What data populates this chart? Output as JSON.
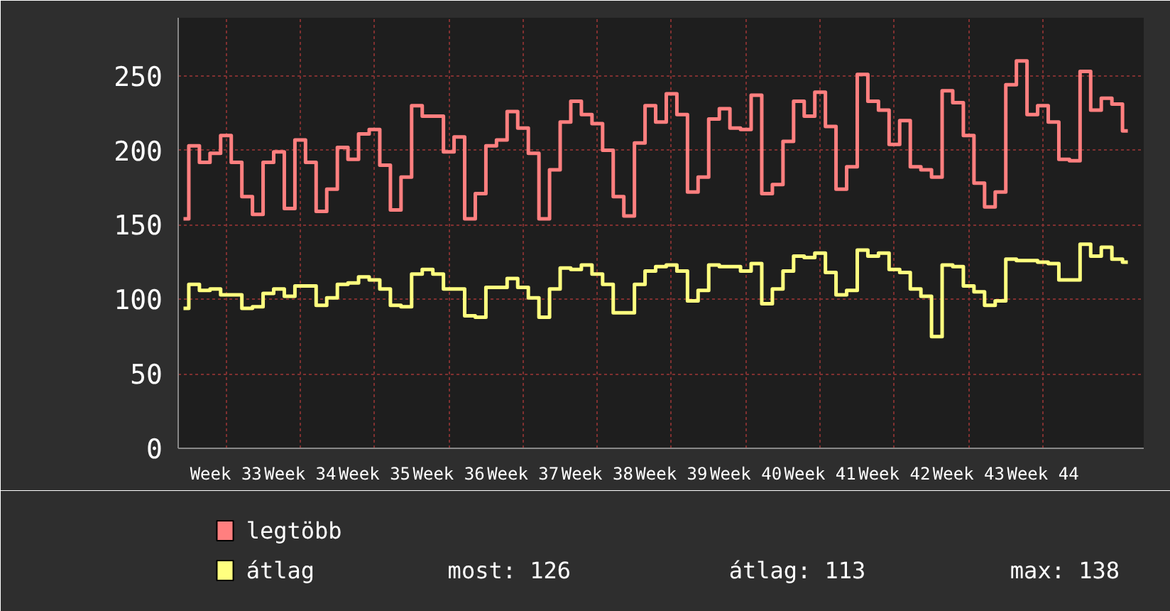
{
  "chart_data": {
    "type": "step",
    "categories": [
      null,
      null,
      null,
      null,
      "Week 33",
      null,
      null,
      null,
      null,
      null,
      null,
      "Week 34",
      null,
      null,
      null,
      null,
      null,
      null,
      "Week 35",
      null,
      null,
      null,
      null,
      null,
      null,
      "Week 36",
      null,
      null,
      null,
      null,
      null,
      null,
      "Week 37",
      null,
      null,
      null,
      null,
      null,
      null,
      "Week 38",
      null,
      null,
      null,
      null,
      null,
      null,
      "Week 39",
      null,
      null,
      null,
      null,
      null,
      null,
      "Week 40",
      null,
      null,
      null,
      null,
      null,
      null,
      "Week 41",
      null,
      null,
      null,
      null,
      null,
      null,
      "Week 42",
      null,
      null,
      null,
      null,
      null,
      null,
      "Week 43",
      null,
      null,
      null,
      null,
      null,
      null,
      "Week 44",
      null,
      null,
      null,
      null,
      null,
      null,
      null,
      null
    ],
    "series": [
      {
        "name": "legtöbb",
        "color": "#ff7f7f",
        "values": [
          154,
          203,
          192,
          198,
          210,
          192,
          169,
          157,
          192,
          199,
          161,
          207,
          192,
          159,
          174,
          202,
          194,
          211,
          214,
          190,
          160,
          182,
          230,
          223,
          223,
          199,
          209,
          154,
          171,
          203,
          207,
          226,
          215,
          198,
          154,
          187,
          219,
          233,
          224,
          218,
          200,
          169,
          156,
          205,
          230,
          219,
          238,
          224,
          172,
          182,
          221,
          228,
          215,
          214,
          237,
          171,
          177,
          206,
          233,
          223,
          239,
          216,
          174,
          189,
          251,
          233,
          227,
          204,
          220,
          189,
          187,
          182,
          240,
          232,
          210,
          178,
          162,
          172,
          244,
          260,
          224,
          230,
          219,
          194,
          193,
          253,
          227,
          235,
          231,
          213
        ]
      },
      {
        "name": "átlag",
        "color": "#ffff7f",
        "values": [
          94,
          110,
          106,
          107,
          103,
          103,
          94,
          95,
          104,
          107,
          102,
          109,
          109,
          96,
          101,
          110,
          111,
          115,
          113,
          107,
          96,
          95,
          117,
          120,
          117,
          107,
          107,
          89,
          88,
          108,
          108,
          114,
          108,
          101,
          88,
          107,
          121,
          120,
          123,
          117,
          110,
          91,
          91,
          110,
          119,
          122,
          123,
          119,
          99,
          106,
          123,
          122,
          122,
          119,
          124,
          97,
          107,
          119,
          129,
          128,
          131,
          118,
          103,
          106,
          133,
          129,
          131,
          120,
          118,
          107,
          102,
          75,
          123,
          122,
          109,
          105,
          96,
          99,
          127,
          126,
          126,
          125,
          124,
          113,
          113,
          137,
          129,
          135,
          127,
          125
        ]
      }
    ],
    "ylim": [
      0,
      289
    ],
    "yticks": [
      0,
      50,
      100,
      150,
      200,
      250
    ],
    "grid": true,
    "legend": "bottom",
    "annotations": [
      "most: 126",
      "átlag: 113",
      "max: 138"
    ]
  }
}
